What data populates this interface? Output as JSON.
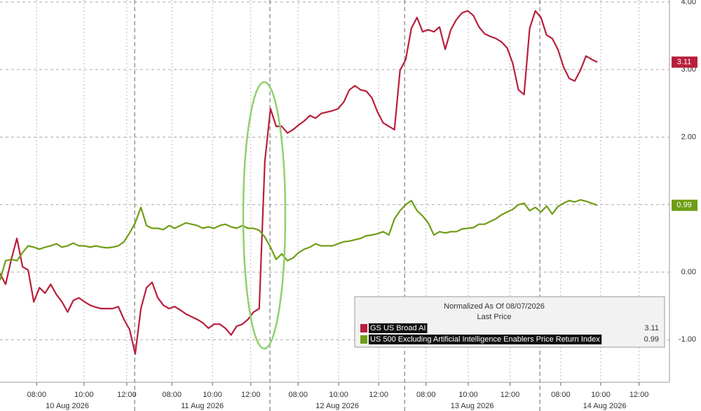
{
  "chart_data": {
    "type": "line",
    "legend_title": "Normalized As Of 08/07/2026",
    "legend_subtitle": "Last Price",
    "series": [
      {
        "name": "GS US Broad AI",
        "color": "#b81f3c",
        "values": [
          -0.02,
          -0.18,
          0.19,
          0.5,
          0.08,
          0.03,
          -0.44,
          -0.23,
          -0.31,
          -0.18,
          -0.33,
          -0.44,
          -0.59,
          -0.42,
          -0.38,
          -0.44,
          -0.49,
          -0.52,
          -0.54,
          -0.54,
          -0.54,
          -0.51,
          -0.7,
          -0.85,
          -1.21,
          -0.54,
          -0.23,
          -0.15,
          -0.38,
          -0.49,
          -0.54,
          -0.51,
          -0.56,
          -0.62,
          -0.66,
          -0.7,
          -0.75,
          -0.83,
          -0.77,
          -0.77,
          -0.83,
          -0.93,
          -0.8,
          -0.77,
          -0.7,
          -0.59,
          -0.54,
          1.64,
          2.42,
          2.16,
          2.16,
          2.06,
          2.11,
          2.18,
          2.24,
          2.32,
          2.28,
          2.35,
          2.37,
          2.39,
          2.42,
          2.52,
          2.7,
          2.76,
          2.7,
          2.68,
          2.58,
          2.37,
          2.21,
          2.16,
          2.11,
          2.99,
          3.15,
          3.61,
          3.77,
          3.56,
          3.59,
          3.56,
          3.63,
          3.3,
          3.59,
          3.74,
          3.84,
          3.87,
          3.8,
          3.63,
          3.53,
          3.49,
          3.46,
          3.41,
          3.32,
          3.09,
          2.7,
          2.63,
          3.61,
          3.87,
          3.77,
          3.51,
          3.46,
          3.3,
          3.04,
          2.87,
          2.83,
          2.99,
          3.2,
          3.15,
          3.11
        ]
      },
      {
        "name": "US 500 Excluding Artificial Intelligence Enablers Price Return Index",
        "color": "#6f9e16",
        "values": [
          -0.12,
          0.17,
          0.19,
          0.17,
          0.29,
          0.39,
          0.37,
          0.34,
          0.37,
          0.39,
          0.42,
          0.37,
          0.39,
          0.43,
          0.39,
          0.39,
          0.37,
          0.39,
          0.37,
          0.36,
          0.37,
          0.39,
          0.45,
          0.58,
          0.73,
          0.96,
          0.69,
          0.65,
          0.65,
          0.63,
          0.69,
          0.65,
          0.69,
          0.73,
          0.71,
          0.69,
          0.65,
          0.67,
          0.65,
          0.69,
          0.71,
          0.67,
          0.65,
          0.69,
          0.65,
          0.65,
          0.62,
          0.52,
          0.37,
          0.19,
          0.27,
          0.17,
          0.21,
          0.29,
          0.34,
          0.37,
          0.42,
          0.39,
          0.39,
          0.39,
          0.42,
          0.45,
          0.46,
          0.48,
          0.5,
          0.54,
          0.55,
          0.57,
          0.6,
          0.55,
          0.79,
          0.91,
          1.0,
          1.06,
          0.91,
          0.83,
          0.73,
          0.55,
          0.6,
          0.58,
          0.6,
          0.6,
          0.64,
          0.65,
          0.66,
          0.71,
          0.71,
          0.75,
          0.79,
          0.85,
          0.89,
          0.93,
          1.0,
          1.02,
          0.91,
          0.96,
          0.89,
          0.98,
          0.86,
          0.97,
          1.02,
          1.06,
          1.04,
          1.07,
          1.05,
          1.02,
          0.99
        ]
      }
    ],
    "xlim": [
      0,
      118.8
    ],
    "xticks": [
      {
        "value": 6.5,
        "label": "08:00"
      },
      {
        "value": 14.9,
        "label": "10:00"
      },
      {
        "value": 22.5,
        "label": "12:00"
      },
      {
        "value": 30.5,
        "label": "08:00"
      },
      {
        "value": 37.7,
        "label": "10:00"
      },
      {
        "value": 44.5,
        "label": "12:00"
      },
      {
        "value": 52.9,
        "label": "08:00"
      },
      {
        "value": 60.1,
        "label": "10:00"
      },
      {
        "value": 67.2,
        "label": "12:00"
      },
      {
        "value": 75.6,
        "label": "08:00"
      },
      {
        "value": 83.1,
        "label": "10:00"
      },
      {
        "value": 90.5,
        "label": "12:00"
      },
      {
        "value": 99.5,
        "label": "08:00"
      },
      {
        "value": 106.6,
        "label": "10:00"
      },
      {
        "value": 113.4,
        "label": "12:00"
      }
    ],
    "day_groups": {
      "labels": [
        "10 Aug 2026",
        "11 Aug 2026",
        "12 Aug 2026",
        "13 Aug 2026",
        "14 Aug 2026"
      ],
      "bounds": [
        0,
        23.9,
        47.9,
        71.8,
        95.8,
        118.8
      ]
    },
    "ylim": [
      -1.63,
      4.03
    ],
    "yticks": [
      {
        "value": -1,
        "label": "-1.00"
      },
      {
        "value": 0,
        "label": "0.00"
      },
      {
        "value": 1,
        "label": "1.00"
      },
      {
        "value": 2,
        "label": "2.00"
      },
      {
        "value": 3,
        "label": "3.00"
      },
      {
        "value": 4,
        "label": "4.00"
      }
    ],
    "grid": true
  }
}
